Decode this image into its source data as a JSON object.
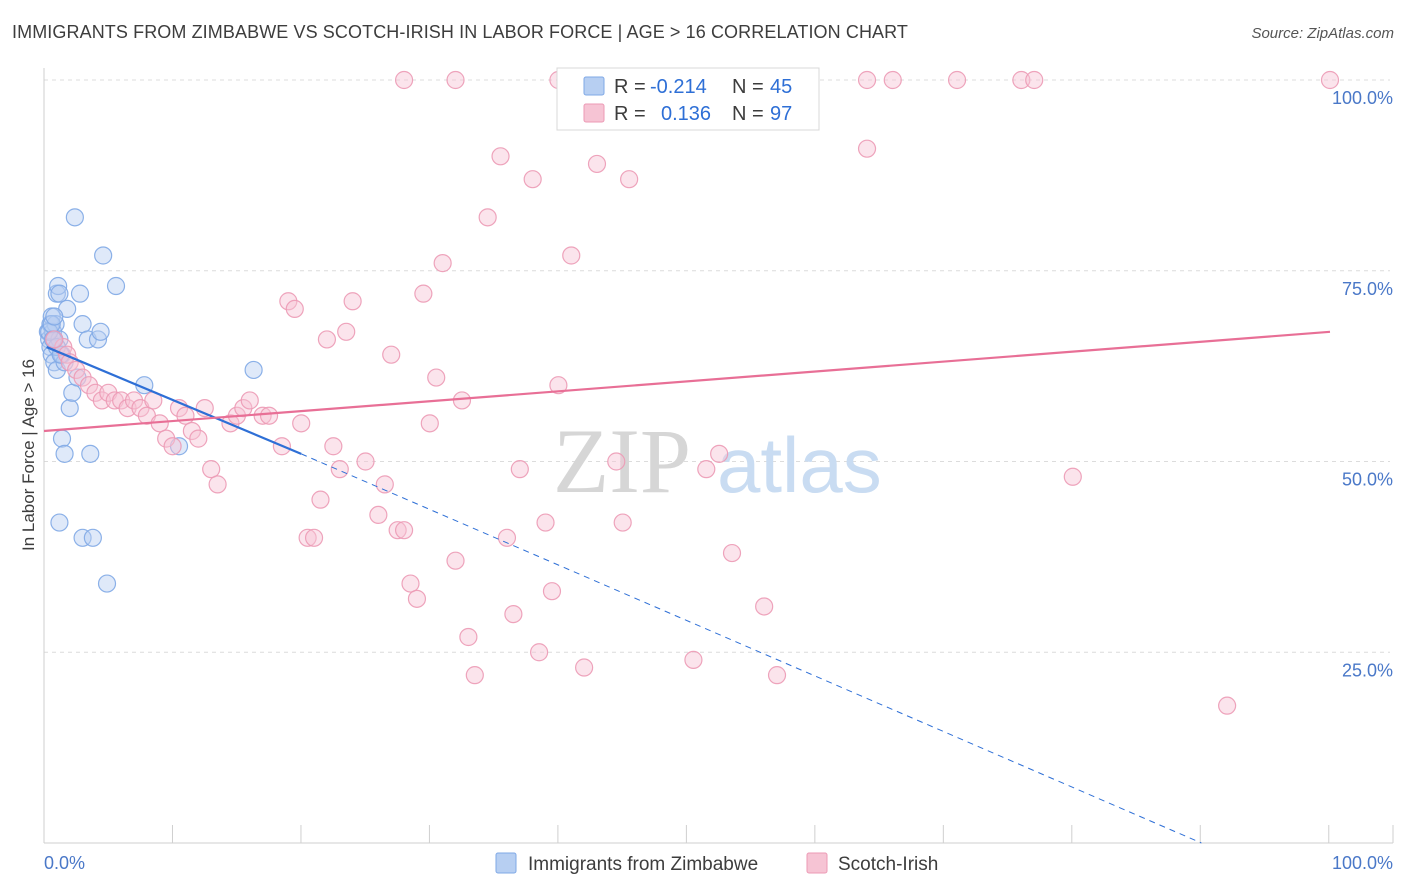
{
  "chart_data": {
    "type": "scatter",
    "title": "IMMIGRANTS FROM ZIMBABWE VS SCOTCH-IRISH IN LABOR FORCE | AGE > 16 CORRELATION CHART",
    "source": "Source: ZipAtlas.com",
    "xlabel": "",
    "ylabel": "In Labor Force | Age > 16",
    "xlim": [
      0,
      100
    ],
    "ylim": [
      0,
      100
    ],
    "x_tick_labels": [
      "0.0%",
      "100.0%"
    ],
    "y_tick_values": [
      25,
      50,
      75,
      100
    ],
    "y_tick_labels": [
      "25.0%",
      "50.0%",
      "75.0%",
      "100.0%"
    ],
    "grid": true,
    "watermark": {
      "part1": "ZIP",
      "part2": "atlas"
    },
    "stats_box": {
      "rows": [
        {
          "series": "Immigrants from Zimbabwe",
          "r_label": "R =",
          "r_value": "-0.214",
          "n_label": "N =",
          "n_value": "45"
        },
        {
          "series": "Scotch-Irish",
          "r_label": "R =",
          "r_value": "0.136",
          "n_label": "N =",
          "n_value": "97"
        }
      ]
    },
    "series": [
      {
        "name": "Immigrants from Zimbabwe",
        "color": "#7fa8e6",
        "fill": "#b7cff2",
        "line_color": "#2e6fd6",
        "trend": {
          "x0": 0.2,
          "y0": 65,
          "x1": 20,
          "y1": 51,
          "dashed_to_x": 90,
          "dashed_to_y": 0
        },
        "points": [
          [
            0.3,
            67
          ],
          [
            0.4,
            66
          ],
          [
            0.5,
            68
          ],
          [
            0.6,
            69
          ],
          [
            0.7,
            67
          ],
          [
            0.8,
            66
          ],
          [
            0.9,
            68
          ],
          [
            1.0,
            72
          ],
          [
            1.1,
            73
          ],
          [
            1.2,
            72
          ],
          [
            0.5,
            65
          ],
          [
            0.6,
            64
          ],
          [
            0.8,
            63
          ],
          [
            1.0,
            62
          ],
          [
            1.2,
            66
          ],
          [
            1.4,
            64
          ],
          [
            1.6,
            63
          ],
          [
            1.8,
            70
          ],
          [
            2.0,
            57
          ],
          [
            2.2,
            59
          ],
          [
            2.4,
            82
          ],
          [
            2.6,
            61
          ],
          [
            2.8,
            72
          ],
          [
            3.0,
            68
          ],
          [
            3.4,
            66
          ],
          [
            4.2,
            66
          ],
          [
            4.4,
            67
          ],
          [
            4.6,
            77
          ],
          [
            5.6,
            73
          ],
          [
            1.4,
            53
          ],
          [
            1.6,
            51
          ],
          [
            3.0,
            40
          ],
          [
            3.6,
            51
          ],
          [
            1.2,
            42
          ],
          [
            3.8,
            40
          ],
          [
            4.9,
            34
          ],
          [
            7.8,
            60
          ],
          [
            10.5,
            52
          ],
          [
            16.3,
            62
          ],
          [
            0.4,
            67
          ],
          [
            0.6,
            68
          ],
          [
            0.8,
            69
          ],
          [
            1.0,
            65
          ],
          [
            1.3,
            64
          ],
          [
            0.7,
            66
          ]
        ]
      },
      {
        "name": "Scotch-Irish",
        "color": "#ec9ab5",
        "fill": "#f6c4d4",
        "line_color": "#e86f96",
        "trend": {
          "x0": 0,
          "y0": 54,
          "x1": 100,
          "y1": 67
        },
        "points": [
          [
            1.5,
            65
          ],
          [
            1.8,
            64
          ],
          [
            2.0,
            63
          ],
          [
            2.5,
            62
          ],
          [
            3.0,
            61
          ],
          [
            3.5,
            60
          ],
          [
            4.0,
            59
          ],
          [
            4.5,
            58
          ],
          [
            5.0,
            59
          ],
          [
            5.5,
            58
          ],
          [
            6.0,
            58
          ],
          [
            6.5,
            57
          ],
          [
            7.0,
            58
          ],
          [
            7.5,
            57
          ],
          [
            8.0,
            56
          ],
          [
            8.5,
            58
          ],
          [
            9.0,
            55
          ],
          [
            9.5,
            53
          ],
          [
            10.0,
            52
          ],
          [
            10.5,
            57
          ],
          [
            11.0,
            56
          ],
          [
            11.5,
            54
          ],
          [
            12.0,
            53
          ],
          [
            12.5,
            57
          ],
          [
            13.0,
            49
          ],
          [
            13.5,
            47
          ],
          [
            14.5,
            55
          ],
          [
            15.0,
            56
          ],
          [
            15.5,
            57
          ],
          [
            16.0,
            58
          ],
          [
            17.0,
            56
          ],
          [
            17.5,
            56
          ],
          [
            18.5,
            52
          ],
          [
            19.0,
            71
          ],
          [
            19.5,
            70
          ],
          [
            20.0,
            55
          ],
          [
            20.5,
            40
          ],
          [
            21.0,
            40
          ],
          [
            21.5,
            45
          ],
          [
            22.0,
            66
          ],
          [
            22.5,
            52
          ],
          [
            23.0,
            49
          ],
          [
            23.5,
            67
          ],
          [
            24.0,
            71
          ],
          [
            25.0,
            50
          ],
          [
            26.0,
            43
          ],
          [
            26.5,
            47
          ],
          [
            27.0,
            64
          ],
          [
            27.5,
            41
          ],
          [
            28.0,
            41
          ],
          [
            28.5,
            34
          ],
          [
            29.0,
            32
          ],
          [
            29.5,
            72
          ],
          [
            30.0,
            55
          ],
          [
            30.5,
            61
          ],
          [
            31.0,
            76
          ],
          [
            32.0,
            37
          ],
          [
            32.5,
            58
          ],
          [
            33.0,
            27
          ],
          [
            33.5,
            22
          ],
          [
            34.5,
            82
          ],
          [
            35.5,
            90
          ],
          [
            36.0,
            40
          ],
          [
            36.5,
            30
          ],
          [
            37.0,
            49
          ],
          [
            38.0,
            87
          ],
          [
            38.5,
            25
          ],
          [
            39.0,
            42
          ],
          [
            39.5,
            33
          ],
          [
            40.0,
            60
          ],
          [
            41.0,
            77
          ],
          [
            42.0,
            23
          ],
          [
            43.0,
            89
          ],
          [
            44.5,
            50
          ],
          [
            45.0,
            42
          ],
          [
            45.5,
            87
          ],
          [
            50.5,
            24
          ],
          [
            51.5,
            49
          ],
          [
            52.5,
            51
          ],
          [
            53.5,
            38
          ],
          [
            56.0,
            31
          ],
          [
            57.0,
            22
          ],
          [
            64.0,
            91
          ],
          [
            80.0,
            48
          ],
          [
            92.0,
            18
          ],
          [
            28.0,
            100
          ],
          [
            32.0,
            100
          ],
          [
            40.0,
            100
          ],
          [
            41.0,
            100
          ],
          [
            48.0,
            100
          ],
          [
            64.0,
            100
          ],
          [
            66.0,
            100
          ],
          [
            71.0,
            100
          ],
          [
            76.0,
            100
          ],
          [
            77.0,
            100
          ],
          [
            100.0,
            100
          ],
          [
            0.8,
            66
          ]
        ]
      }
    ]
  },
  "legend": {
    "items": [
      {
        "label": "Immigrants from Zimbabwe"
      },
      {
        "label": "Scotch-Irish"
      }
    ]
  }
}
